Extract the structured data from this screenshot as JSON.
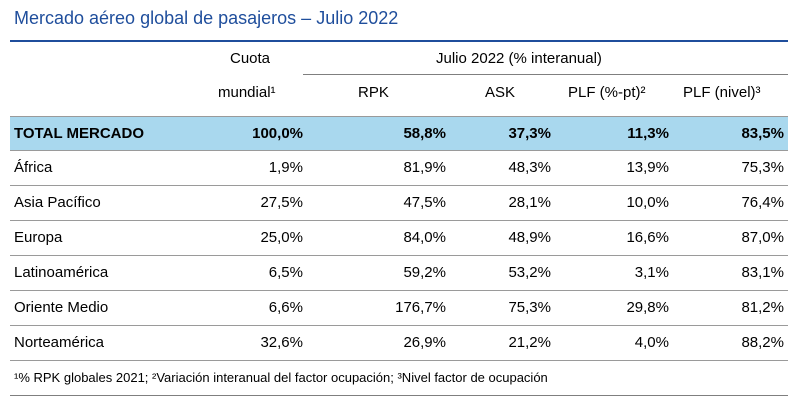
{
  "title": "Mercado aéreo global de pasajeros – Julio 2022",
  "header": {
    "col1_line1": "Cuota",
    "col1_line2": "mundial¹",
    "group": "Julio 2022 (% interanual)",
    "rpk": "RPK",
    "ask": "ASK",
    "plf_pt": "PLF (%-pt)²",
    "plf_level": "PLF (nivel)³"
  },
  "rows": [
    {
      "region": "TOTAL MERCADO",
      "cuota": "100,0%",
      "rpk": "58,8%",
      "ask": "37,3%",
      "plf_pt": "11,3%",
      "plf_level": "83,5%"
    },
    {
      "region": "África",
      "cuota": "1,9%",
      "rpk": "81,9%",
      "ask": "48,3%",
      "plf_pt": "13,9%",
      "plf_level": "75,3%"
    },
    {
      "region": "Asia Pacífico",
      "cuota": "27,5%",
      "rpk": "47,5%",
      "ask": "28,1%",
      "plf_pt": "10,0%",
      "plf_level": "76,4%"
    },
    {
      "region": "Europa",
      "cuota": "25,0%",
      "rpk": "84,0%",
      "ask": "48,9%",
      "plf_pt": "16,6%",
      "plf_level": "87,0%"
    },
    {
      "region": "Latinoamérica",
      "cuota": "6,5%",
      "rpk": "59,2%",
      "ask": "53,2%",
      "plf_pt": "3,1%",
      "plf_level": "83,1%"
    },
    {
      "region": "Oriente Medio",
      "cuota": "6,6%",
      "rpk": "176,7%",
      "ask": "75,3%",
      "plf_pt": "29,8%",
      "plf_level": "81,2%"
    },
    {
      "region": "Norteamérica",
      "cuota": "32,6%",
      "rpk": "26,9%",
      "ask": "21,2%",
      "plf_pt": "4,0%",
      "plf_level": "88,2%"
    }
  ],
  "footnote": "¹% RPK globales 2021; ²Variación interanual del factor ocupación; ³Nivel factor de ocupación",
  "colors": {
    "title": "#1f4e9c",
    "total_row_bg": "#a9d8ee"
  }
}
